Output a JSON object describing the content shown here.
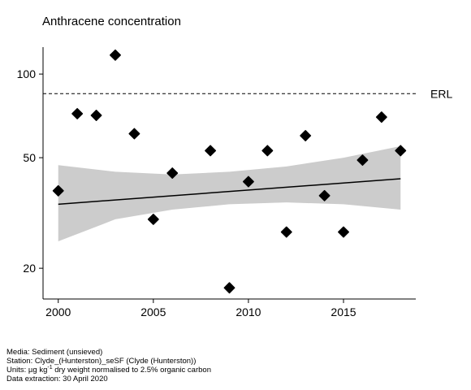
{
  "chart_data": {
    "type": "scatter",
    "title": "Anthracene concentration",
    "xlabel": "",
    "ylabel": "",
    "y_scale": "log",
    "xlim": [
      1999.2,
      2018.8
    ],
    "ylim": [
      15.5,
      125
    ],
    "x_ticks": [
      2000,
      2005,
      2010,
      2015
    ],
    "y_ticks": [
      20,
      50,
      100
    ],
    "grid": false,
    "points": [
      {
        "x": 2000,
        "y": 38
      },
      {
        "x": 2001,
        "y": 72
      },
      {
        "x": 2002,
        "y": 71
      },
      {
        "x": 2003,
        "y": 117
      },
      {
        "x": 2004,
        "y": 61
      },
      {
        "x": 2005,
        "y": 30
      },
      {
        "x": 2006,
        "y": 44
      },
      {
        "x": 2008,
        "y": 53
      },
      {
        "x": 2009,
        "y": 17
      },
      {
        "x": 2010,
        "y": 41
      },
      {
        "x": 2011,
        "y": 53
      },
      {
        "x": 2012,
        "y": 27
      },
      {
        "x": 2013,
        "y": 60
      },
      {
        "x": 2014,
        "y": 36.5
      },
      {
        "x": 2015,
        "y": 27
      },
      {
        "x": 2016,
        "y": 49
      },
      {
        "x": 2017,
        "y": 70
      },
      {
        "x": 2018,
        "y": 53
      }
    ],
    "trend": {
      "x": [
        2000,
        2018
      ],
      "y": [
        34,
        42
      ]
    },
    "confidence_band": {
      "x": [
        2000,
        2003,
        2006,
        2009,
        2012,
        2015,
        2018
      ],
      "upper": [
        47,
        44.5,
        43.5,
        44.5,
        46.5,
        50,
        55
      ],
      "lower": [
        25,
        30,
        32.5,
        34,
        34.5,
        34,
        32.5
      ]
    },
    "reference_line": {
      "label": "ERL",
      "y": 85
    }
  },
  "footer": {
    "media": "Media: Sediment (unsieved)",
    "station": "Station: Clyde_(Hunterston)_seSF (Clyde (Hunterston))",
    "units_prefix": "Units:  µg kg",
    "units_sup": "-1",
    "units_suffix": " dry weight normalised to 2.5% organic carbon",
    "extraction": "Data extraction: 30 April 2020"
  }
}
